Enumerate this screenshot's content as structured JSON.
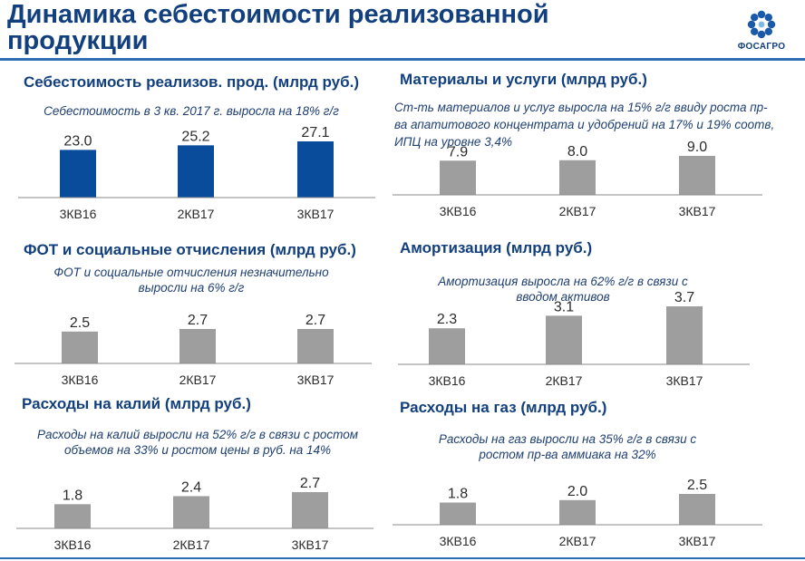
{
  "page_title": "Динамика себестоимости реализованной продукции",
  "logo_text": "ФОСАГРО",
  "colors": {
    "accent": "#123f7d",
    "primary_bar": "#0a4c9c",
    "secondary_bar": "#9e9e9e",
    "rule": "#2f6fb6"
  },
  "panels": [
    {
      "title": "Себестоимость реализов. прод. (млрд руб.)",
      "subtitle": "Себестоимость в 3 кв. 2017 г. выросла на 18% г/г"
    },
    {
      "title": "Материалы и услуги (млрд руб.)",
      "subtitle": "Ст-ть материалов и услуг выросла на 15% г/г ввиду роста пр-ва апатитового концентрата и удобрений на 17% и 19% соотв, ИПЦ на уровне 3,4%"
    },
    {
      "title": "ФОТ и социальные отчисления (млрд руб.)",
      "subtitle": "ФОТ и социальные отчисления незначительно выросли на 6% г/г"
    },
    {
      "title": "Амортизация (млрд руб.)",
      "subtitle": "Амортизация выросла на 62% г/г в связи с вводом активов"
    },
    {
      "title": "Расходы на калий (млрд руб.)",
      "subtitle": "Расходы на калий выросли на 52% г/г в связи с ростом объемов на 33% и ростом цены в руб. на 14%"
    },
    {
      "title": "Расходы на газ (млрд руб.)",
      "subtitle": "Расходы на газ выросли на 35% г/г в связи с ростом пр-ва аммиака на 32%"
    }
  ],
  "chart_data": [
    {
      "type": "bar",
      "title": "Себестоимость реализов. прод. (млрд руб.)",
      "categories": [
        "3КВ16",
        "2КВ17",
        "3КВ17"
      ],
      "values": [
        23.0,
        25.2,
        27.1
      ],
      "value_labels": [
        "23.0",
        "25.2",
        "27.1"
      ],
      "ylim": [
        0,
        27.1
      ],
      "color": "#0a4c9c",
      "grid": false
    },
    {
      "type": "bar",
      "title": "Материалы и услуги (млрд руб.)",
      "categories": [
        "3КВ16",
        "2КВ17",
        "3КВ17"
      ],
      "values": [
        7.9,
        8.0,
        9.0
      ],
      "value_labels": [
        "7.9",
        "8.0",
        "9.0"
      ],
      "ylim": [
        0,
        9.0
      ],
      "color": "#9e9e9e",
      "grid": false
    },
    {
      "type": "bar",
      "title": "ФОТ и социальные отчисления (млрд руб.)",
      "categories": [
        "3КВ16",
        "2КВ17",
        "3КВ17"
      ],
      "values": [
        2.5,
        2.7,
        2.7
      ],
      "value_labels": [
        "2.5",
        "2.7",
        "2.7"
      ],
      "ylim": [
        0,
        2.7
      ],
      "color": "#9e9e9e",
      "grid": false
    },
    {
      "type": "bar",
      "title": "Амортизация (млрд руб.)",
      "categories": [
        "3КВ16",
        "2КВ17",
        "3КВ17"
      ],
      "values": [
        2.3,
        3.1,
        3.7
      ],
      "value_labels": [
        "2.3",
        "3.1",
        "3.7"
      ],
      "ylim": [
        0,
        3.7
      ],
      "color": "#9e9e9e",
      "grid": false
    },
    {
      "type": "bar",
      "title": "Расходы на калий (млрд руб.)",
      "categories": [
        "3КВ16",
        "2КВ17",
        "3КВ17"
      ],
      "values": [
        1.8,
        2.4,
        2.7
      ],
      "value_labels": [
        "1.8",
        "2.4",
        "2.7"
      ],
      "ylim": [
        0,
        2.7
      ],
      "color": "#9e9e9e",
      "grid": false
    },
    {
      "type": "bar",
      "title": "Расходы на газ (млрд руб.)",
      "categories": [
        "3КВ16",
        "2КВ17",
        "3КВ17"
      ],
      "values": [
        1.8,
        2.0,
        2.5
      ],
      "value_labels": [
        "1.8",
        "2.0",
        "2.5"
      ],
      "ylim": [
        0,
        2.5
      ],
      "color": "#9e9e9e",
      "grid": false
    }
  ]
}
